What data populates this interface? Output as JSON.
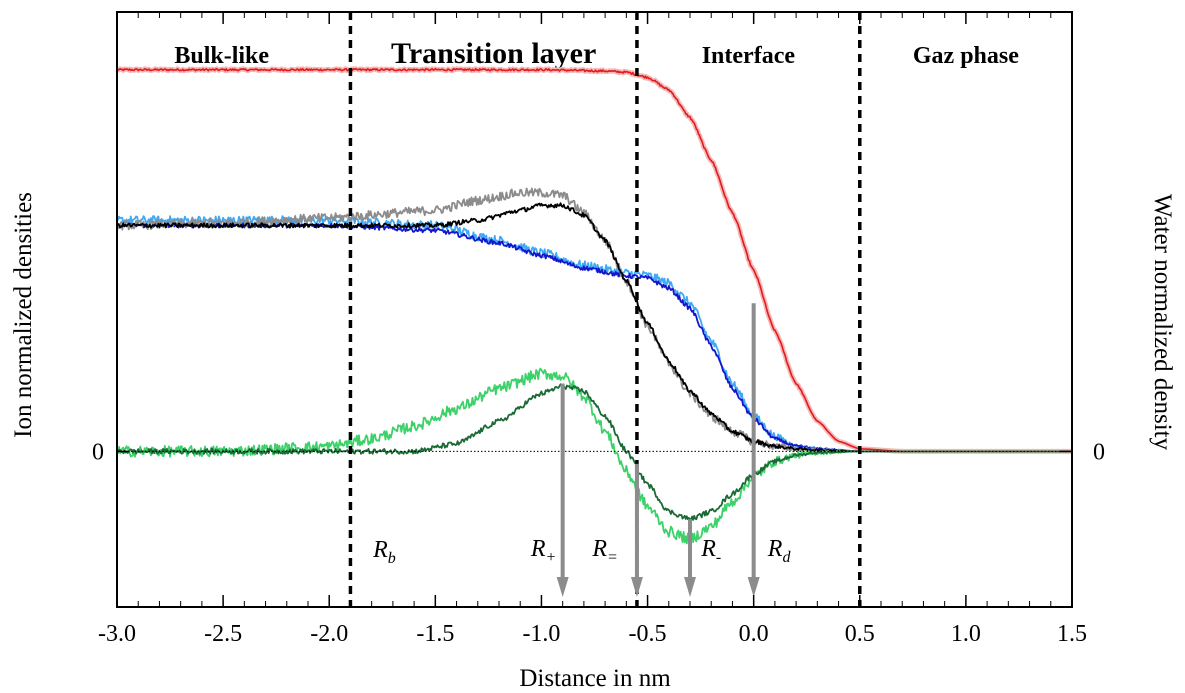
{
  "chart_data": {
    "type": "line",
    "xlabel": "Distance in nm",
    "ylabel_left": "Ion normalized densities",
    "ylabel_right": "Water normalized density",
    "xlim": [
      -3.0,
      1.5
    ],
    "ylim": [
      -0.62,
      1.75
    ],
    "xticks": [
      -3.0,
      -2.5,
      -2.0,
      -1.5,
      -1.0,
      -0.5,
      0.0,
      0.5,
      1.0,
      1.5
    ],
    "xtick_labels": [
      "-3.0",
      "-2.5",
      "-2.0",
      "-1.5",
      "-1.0",
      "-0.5",
      "0.0",
      "0.5",
      "1.0",
      "1.5"
    ],
    "zero_label_left": "0",
    "zero_label_right": "0",
    "regions": [
      {
        "label": "Bulk-like",
        "x_start": -3.0,
        "x_end": -1.9
      },
      {
        "label": "Transition layer",
        "x_start": -1.9,
        "x_end": -0.55
      },
      {
        "label": "Interface",
        "x_start": -0.55,
        "x_end": 0.5
      },
      {
        "label": "Gaz phase",
        "x_start": 0.5,
        "x_end": 1.5
      }
    ],
    "dividers_x": [
      -1.9,
      -0.55,
      0.5
    ],
    "markers": [
      {
        "symbol": "R",
        "sub": "b",
        "x": -1.9,
        "arrow": false
      },
      {
        "symbol": "R",
        "sub": "+",
        "x": -0.9,
        "arrow": true
      },
      {
        "symbol": "R",
        "sub": "=",
        "x": -0.55,
        "arrow": true
      },
      {
        "symbol": "R",
        "sub": "-",
        "x": -0.3,
        "arrow": true
      },
      {
        "symbol": "R",
        "sub": "d",
        "x": 0.0,
        "arrow": true
      }
    ],
    "series": [
      {
        "color": "#e31a1c",
        "halo": "#f4b8b8",
        "noise": 0.004,
        "x": [
          -3.0,
          -1.0,
          -0.7,
          -0.6,
          -0.5,
          -0.4,
          -0.3,
          -0.2,
          -0.1,
          0.0,
          0.1,
          0.2,
          0.3,
          0.4,
          0.5,
          0.7,
          1.5
        ],
        "y": [
          1.52,
          1.52,
          1.515,
          1.51,
          1.49,
          1.44,
          1.33,
          1.16,
          0.95,
          0.72,
          0.48,
          0.27,
          0.12,
          0.04,
          0.01,
          0.0,
          0.0
        ]
      },
      {
        "color": "#3fa9f5",
        "noise": 0.018,
        "x": [
          -3.0,
          -2.0,
          -1.5,
          -1.2,
          -1.0,
          -0.8,
          -0.6,
          -0.5,
          -0.4,
          -0.3,
          -0.2,
          -0.1,
          0.0,
          0.1,
          0.2,
          0.3,
          0.5,
          1.5
        ],
        "y": [
          0.92,
          0.92,
          0.9,
          0.84,
          0.79,
          0.74,
          0.71,
          0.7,
          0.67,
          0.59,
          0.44,
          0.27,
          0.14,
          0.06,
          0.02,
          0.01,
          0.0,
          0.0
        ]
      },
      {
        "color": "#1515cc",
        "noise": 0.009,
        "x": [
          -3.0,
          -2.0,
          -1.5,
          -1.2,
          -1.0,
          -0.8,
          -0.6,
          -0.5,
          -0.4,
          -0.3,
          -0.2,
          -0.1,
          0.0,
          0.1,
          0.2,
          0.3,
          0.5,
          1.5
        ],
        "y": [
          0.9,
          0.9,
          0.88,
          0.83,
          0.78,
          0.73,
          0.7,
          0.69,
          0.65,
          0.57,
          0.42,
          0.25,
          0.13,
          0.05,
          0.02,
          0.01,
          0.0,
          0.0
        ]
      },
      {
        "color": "#8c8c8c",
        "noise": 0.018,
        "x": [
          -3.0,
          -2.5,
          -2.0,
          -1.5,
          -1.3,
          -1.1,
          -1.0,
          -0.9,
          -0.8,
          -0.7,
          -0.6,
          -0.5,
          -0.4,
          -0.3,
          -0.2,
          -0.1,
          0.0,
          0.1,
          0.2,
          0.3,
          0.5,
          1.5
        ],
        "y": [
          0.9,
          0.91,
          0.93,
          0.96,
          1.0,
          1.03,
          1.03,
          1.02,
          0.95,
          0.84,
          0.68,
          0.5,
          0.35,
          0.23,
          0.14,
          0.08,
          0.04,
          0.02,
          0.01,
          0.005,
          0.0,
          0.0
        ]
      },
      {
        "color": "#000000",
        "noise": 0.009,
        "x": [
          -3.0,
          -2.0,
          -1.5,
          -1.3,
          -1.1,
          -1.0,
          -0.9,
          -0.8,
          -0.7,
          -0.6,
          -0.5,
          -0.4,
          -0.3,
          -0.2,
          -0.1,
          0.0,
          0.1,
          0.2,
          0.3,
          0.5,
          1.5
        ],
        "y": [
          0.9,
          0.9,
          0.9,
          0.92,
          0.96,
          0.98,
          0.98,
          0.94,
          0.84,
          0.68,
          0.51,
          0.36,
          0.24,
          0.15,
          0.08,
          0.04,
          0.02,
          0.01,
          0.005,
          0.0,
          0.0
        ]
      },
      {
        "color": "#3dd16a",
        "noise": 0.022,
        "x": [
          -3.0,
          -2.5,
          -2.0,
          -1.8,
          -1.6,
          -1.4,
          -1.2,
          -1.0,
          -0.9,
          -0.8,
          -0.7,
          -0.6,
          -0.5,
          -0.4,
          -0.3,
          -0.2,
          -0.1,
          0.0,
          0.1,
          0.2,
          0.3,
          0.5,
          1.5
        ],
        "y": [
          0.0,
          0.0,
          0.02,
          0.05,
          0.1,
          0.17,
          0.25,
          0.31,
          0.3,
          0.22,
          0.08,
          -0.08,
          -0.22,
          -0.32,
          -0.35,
          -0.3,
          -0.2,
          -0.1,
          -0.04,
          -0.015,
          -0.005,
          0.0,
          0.0
        ]
      },
      {
        "color": "#1b6a36",
        "noise": 0.01,
        "x": [
          -3.0,
          -2.0,
          -1.8,
          -1.6,
          -1.4,
          -1.2,
          -1.0,
          -0.9,
          -0.8,
          -0.7,
          -0.6,
          -0.5,
          -0.4,
          -0.3,
          -0.2,
          -0.1,
          0.0,
          0.1,
          0.2,
          0.3,
          0.5,
          1.5
        ],
        "y": [
          0.0,
          0.0,
          0.0,
          0.0,
          0.03,
          0.12,
          0.23,
          0.26,
          0.24,
          0.14,
          0.0,
          -0.13,
          -0.24,
          -0.27,
          -0.24,
          -0.17,
          -0.09,
          -0.04,
          -0.015,
          -0.005,
          0.0,
          0.0
        ]
      }
    ]
  }
}
